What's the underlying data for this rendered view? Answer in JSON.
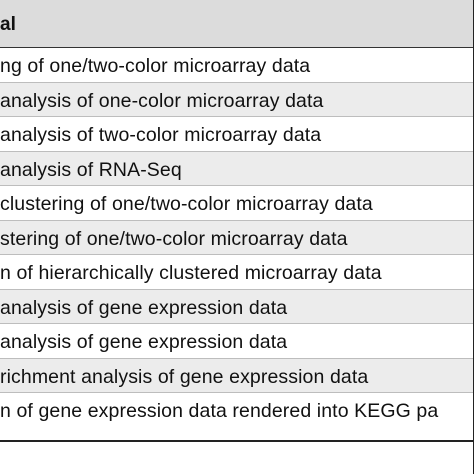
{
  "table": {
    "header": "al",
    "rows": [
      "ng of one/two-color microarray data",
      "analysis of one-color microarray data",
      "analysis of two-color microarray data",
      "analysis of RNA-Seq",
      " clustering of one/two-color microarray data",
      "stering of one/two-color microarray data",
      "n of hierarchically clustered microarray data",
      "analysis of gene expression data",
      "analysis of gene expression data",
      "richment analysis of gene expression data",
      "n of gene expression data rendered into KEGG pa"
    ]
  }
}
